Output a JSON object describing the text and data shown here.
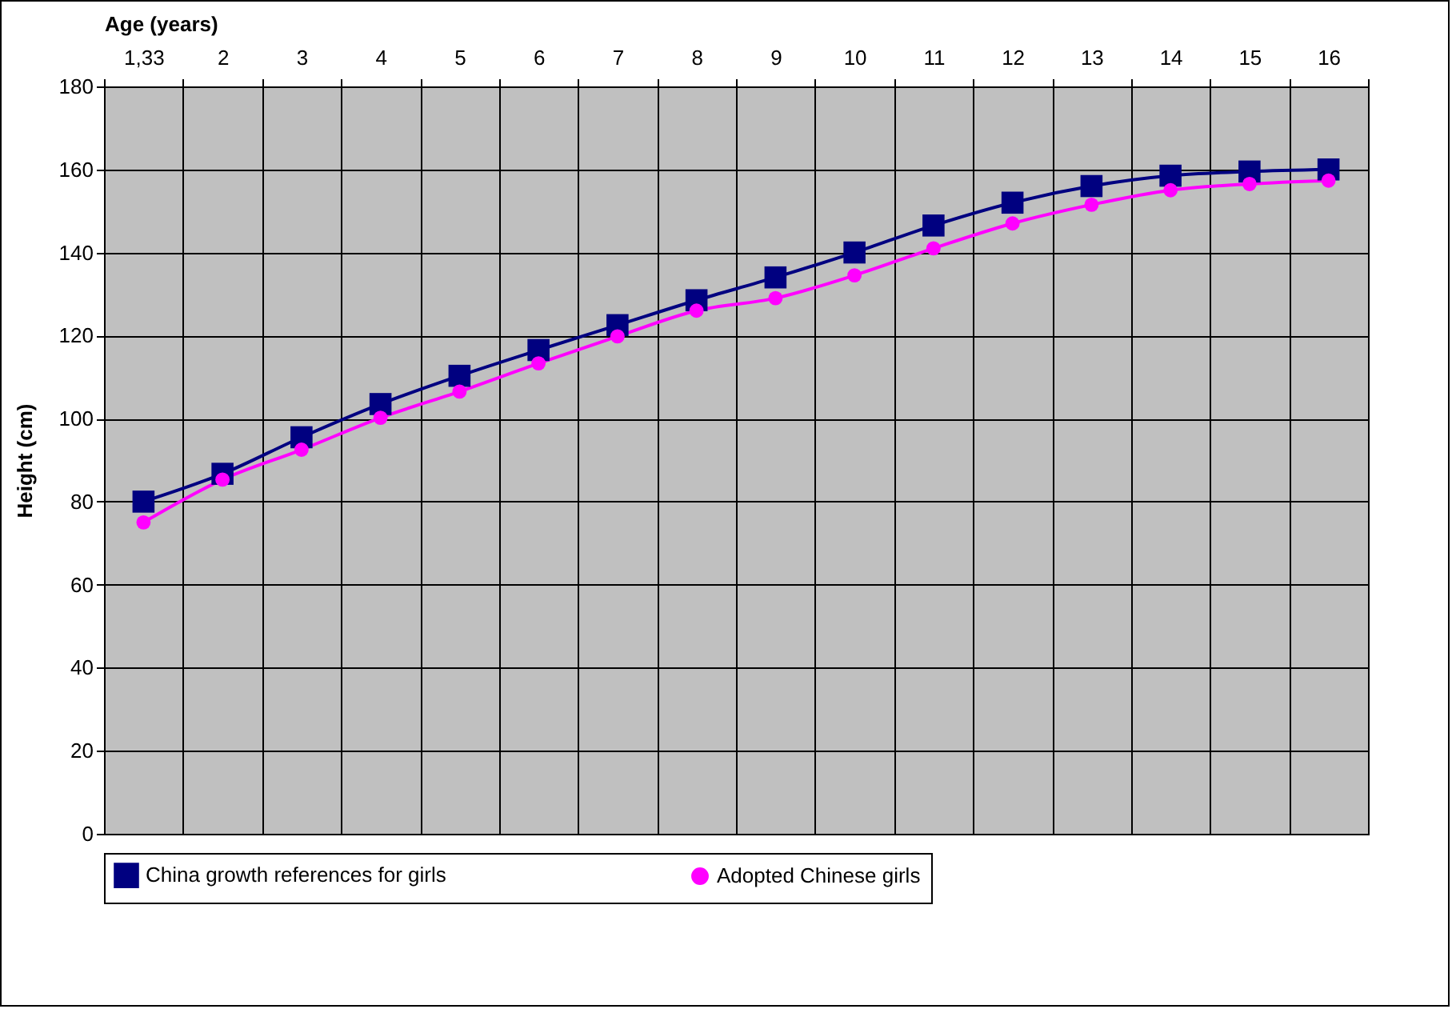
{
  "chart_data": {
    "type": "line",
    "xlabel": "Age (years)",
    "ylabel": "Height (cm)",
    "categories": [
      "1,33",
      "2",
      "3",
      "4",
      "5",
      "6",
      "7",
      "8",
      "9",
      "10",
      "11",
      "12",
      "13",
      "14",
      "15",
      "16"
    ],
    "series": [
      {
        "name": "China growth references for girls",
        "color": "#000080",
        "marker": "square",
        "values": [
          80,
          86.7,
          95.5,
          103.5,
          110.3,
          116.5,
          122.5,
          128.5,
          134,
          140,
          146.5,
          152,
          156,
          158.5,
          159.5,
          160
        ]
      },
      {
        "name": "Adopted Chinese girls",
        "color": "#ff00ff",
        "marker": "circle",
        "values": [
          75,
          85.3,
          92.5,
          100.2,
          106.5,
          113.3,
          119.8,
          126,
          129,
          134.5,
          141,
          147,
          151.5,
          155,
          156.5,
          157.3
        ]
      }
    ],
    "ylim": [
      0,
      180
    ],
    "yticks": [
      0,
      20,
      40,
      60,
      80,
      100,
      120,
      140,
      160,
      180
    ],
    "grid": true,
    "legend": "bottom",
    "line_style": "solid"
  }
}
